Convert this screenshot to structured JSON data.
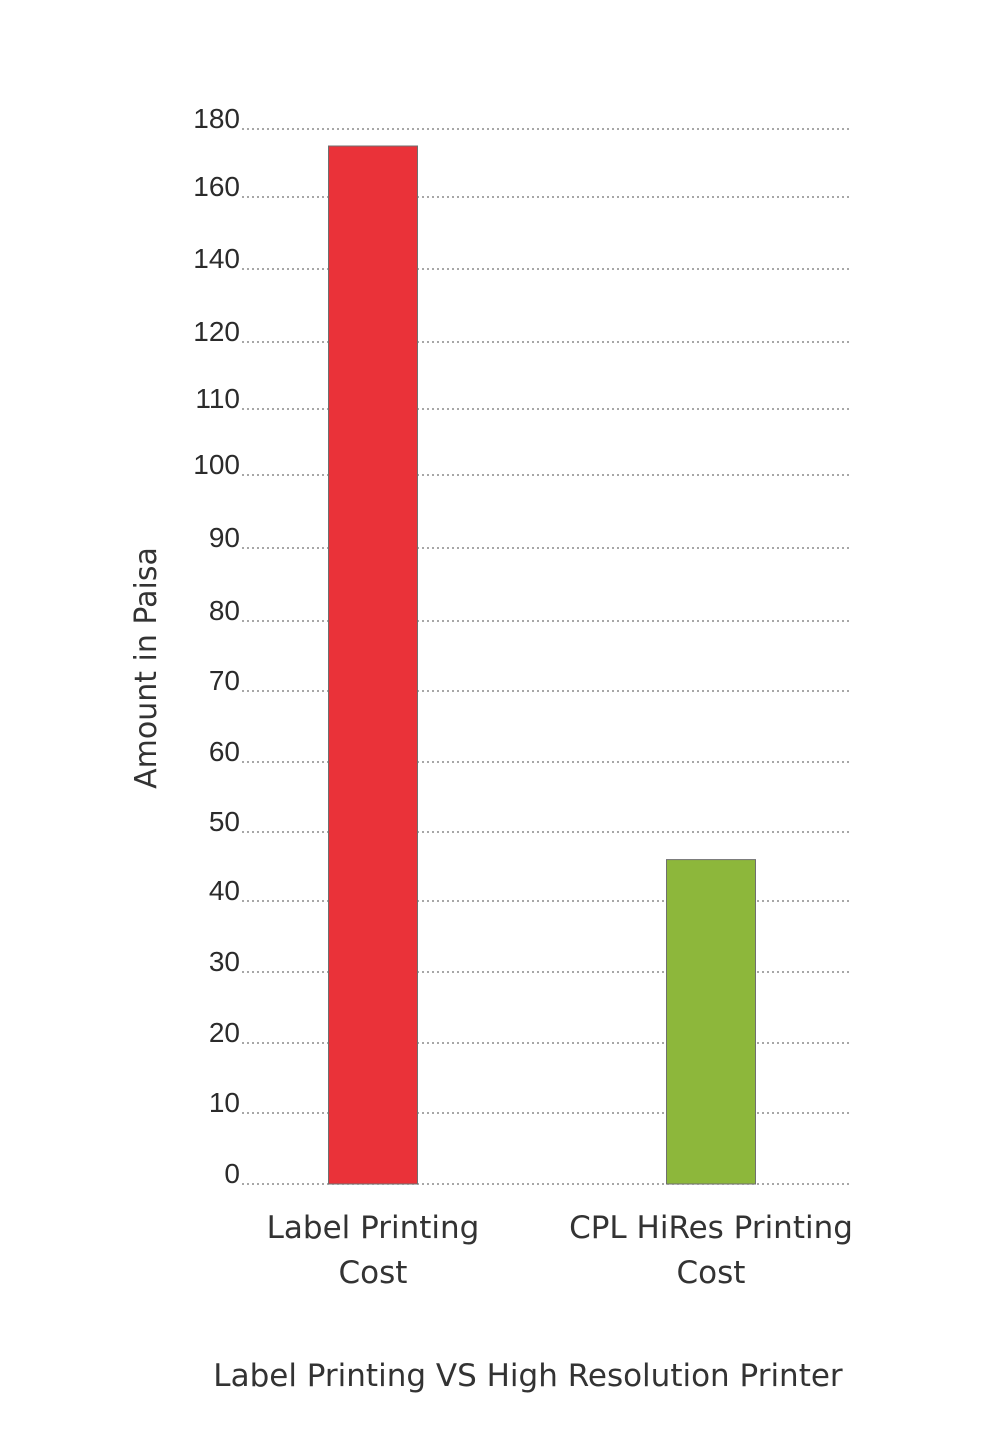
{
  "chart_data": {
    "type": "bar",
    "categories": [
      "Label Printing Cost",
      "CPL HiRes Printing Cost"
    ],
    "category_lines": [
      [
        "Label Printing",
        "Cost"
      ],
      [
        "CPL HiRes Printing",
        "Cost"
      ]
    ],
    "values": [
      175,
      46
    ],
    "colors": [
      "#ea3239",
      "#8db73b"
    ],
    "yticks": [
      0,
      10,
      20,
      30,
      40,
      50,
      60,
      70,
      80,
      90,
      100,
      110,
      120,
      140,
      160,
      180
    ],
    "ylabel": "Amount in Paisa",
    "xlabel": "Label Printing VS High Resolution Printer",
    "grid": true
  }
}
